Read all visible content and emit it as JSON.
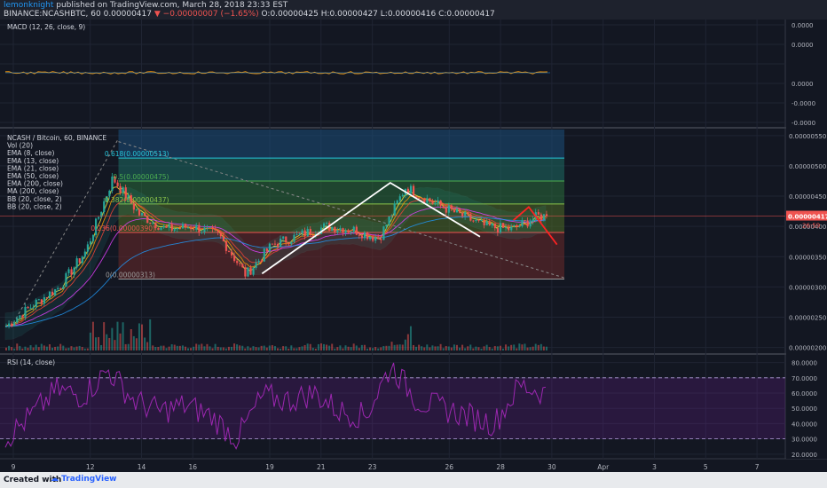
{
  "header": {
    "author": "lemonknight",
    "published": "published on TradingView.com, March 28, 2018 23:33 EST",
    "symbol_line": "BINANCE:NCASHBTC, 60",
    "price": "0.00000417",
    "change_arrow": "▼",
    "change": "−0.00000007 (−1.65%)",
    "ohlc": "O:0.00000425 H:0.00000427 L:0.00000416 C:0.00000417"
  },
  "footer": {
    "created_with": "Created with",
    "brand": "TradingView"
  },
  "colors": {
    "background": "#131722",
    "candle_up": "#26a69a",
    "candle_down": "#ef5350",
    "pattern_white": "#ffffff",
    "pattern_red": "#ff2222",
    "rsi": "#9c27b0"
  },
  "chart_data": [
    {
      "type": "line",
      "panel": "MACD",
      "legend": [
        "MACD (12, 26, close, 9)"
      ],
      "y_ticks": [
        "0.0000",
        "0.0000",
        "0.0000",
        "-0.0000",
        "-0.0000"
      ],
      "ylim": [
        -0.0001,
        0.0001
      ],
      "values": [
        0,
        0,
        0,
        0,
        0
      ]
    },
    {
      "type": "candlestick",
      "panel": "price",
      "legend": [
        "NCASH / Bitcoin, 60, BINANCE",
        "Vol (20)",
        "EMA (8, close)",
        "EMA (13, close)",
        "EMA (21, close)",
        "EMA (50, close)",
        "EMA (200, close)",
        "MA (200, close)",
        "BB (20, close, 2)",
        "BB (20, close, 2)"
      ],
      "y_ticks": [
        "0.00000550",
        "0.00000500",
        "0.00000450",
        "0.00000400",
        "0.00000350",
        "0.00000300",
        "0.00000250",
        "0.00000200"
      ],
      "ylim": [
        1.95e-06,
        5.6e-06
      ],
      "last_price_label": "0.00000417",
      "countdown_label": "26:59",
      "x": [
        9,
        10,
        11,
        12,
        13,
        14,
        15,
        16,
        17,
        18,
        19,
        20,
        21,
        22,
        23,
        24,
        25,
        26,
        27,
        28,
        29
      ],
      "close": [
        2.35e-06,
        2.7e-06,
        3e-06,
        3.6e-06,
        4.8e-06,
        4.2e-06,
        3.95e-06,
        4e-06,
        3.85e-06,
        3.2e-06,
        3.7e-06,
        3.85e-06,
        4e-06,
        3.95e-06,
        3.8e-06,
        4.65e-06,
        4.4e-06,
        4.2e-06,
        4e-06,
        3.95e-06,
        4.17e-06
      ],
      "fibonacci": [
        {
          "label": "0.618(0.00000513)",
          "value": 5.13e-06
        },
        {
          "label": "0.5(0.00000475)",
          "value": 4.75e-06
        },
        {
          "label": "0.382(0.00000437)",
          "value": 4.37e-06
        },
        {
          "label": "0.236(0.00000390)",
          "value": 3.9e-06
        },
        {
          "label": "0(0.00000313)",
          "value": 3.13e-06
        }
      ]
    },
    {
      "type": "line",
      "panel": "RSI",
      "legend": [
        "RSI (14, close)"
      ],
      "y_ticks": [
        "80.0000",
        "70.0000",
        "60.0000",
        "50.0000",
        "40.0000",
        "30.0000",
        "20.0000"
      ],
      "ylim": [
        17,
        85
      ],
      "bands": [
        30,
        70
      ],
      "values": [
        30,
        45,
        62,
        58,
        75,
        55,
        48,
        52,
        45,
        30,
        58,
        55,
        60,
        48,
        45,
        78,
        55,
        50,
        45,
        40,
        65,
        60
      ]
    }
  ],
  "x_axis": {
    "ticks": [
      "9",
      "12",
      "14",
      "16",
      "19",
      "21",
      "23",
      "26",
      "28",
      "30",
      "Apr",
      "3",
      "5",
      "7"
    ]
  }
}
